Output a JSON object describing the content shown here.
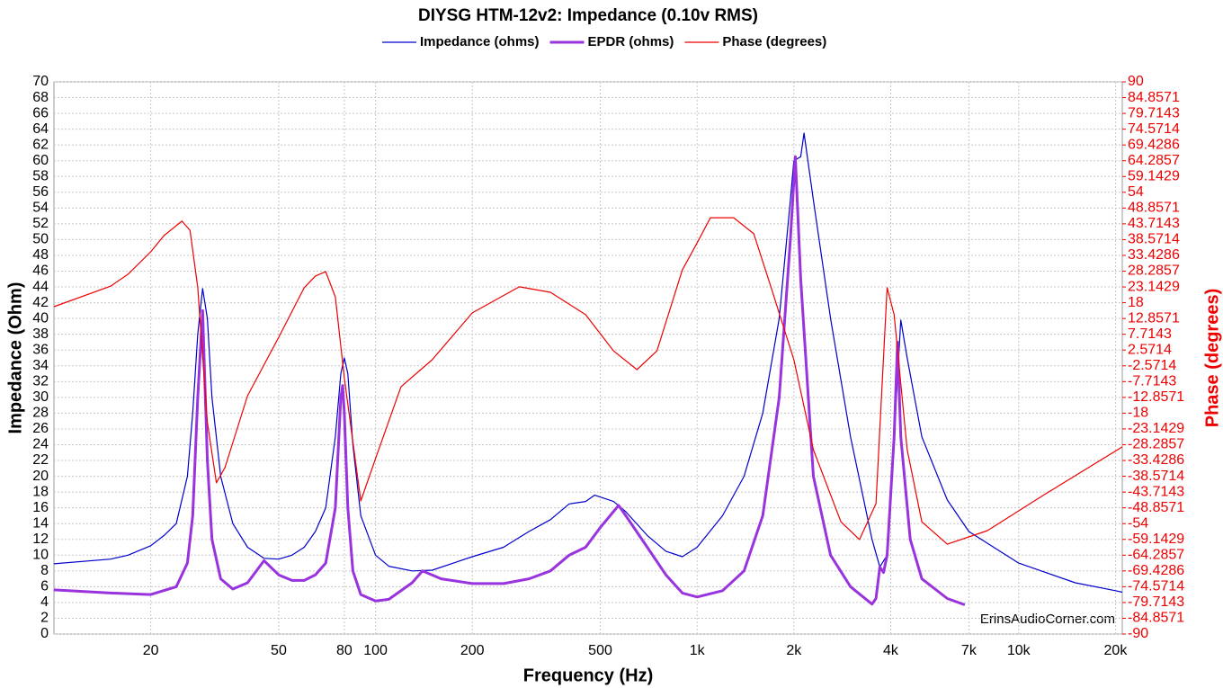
{
  "chart_data": {
    "type": "line",
    "title": "DIYSG HTM-12v2: Impedance (0.10v RMS)",
    "xlabel": "Frequency (Hz)",
    "ylabel": "Impedance (Ohm)",
    "y2label": "Phase (degrees)",
    "annotation": "ErinsAudioCorner.com",
    "xscale": "log",
    "grid": true,
    "legend": "top",
    "xlim": [
      10,
      21000
    ],
    "xticks": [
      20,
      50,
      80,
      100,
      200,
      500,
      {
        "value": 1000,
        "label": "1k"
      },
      {
        "value": 2000,
        "label": "2k"
      },
      {
        "value": 4000,
        "label": "4k"
      },
      {
        "value": 7000,
        "label": "7k"
      },
      {
        "value": 10000,
        "label": "10k"
      },
      {
        "value": 20000,
        "label": "20k"
      }
    ],
    "ylim": [
      0,
      70
    ],
    "yticks": [
      0,
      2,
      4,
      6,
      8,
      10,
      12,
      14,
      16,
      18,
      20,
      22,
      24,
      26,
      28,
      30,
      32,
      34,
      36,
      38,
      40,
      42,
      44,
      46,
      48,
      50,
      52,
      54,
      56,
      58,
      60,
      62,
      64,
      66,
      68,
      70
    ],
    "y2lim": [
      -90,
      90
    ],
    "y2ticks": [
      -90,
      -84.8571,
      -79.7143,
      -74.5714,
      -69.4286,
      -64.2857,
      -59.1429,
      -54,
      -48.8571,
      -43.7143,
      -38.5714,
      -33.4286,
      -28.2857,
      -23.1429,
      -18,
      -12.8571,
      -7.7143,
      -2.5714,
      2.5714,
      7.7143,
      12.8571,
      18,
      23.1429,
      28.2857,
      33.4286,
      38.5714,
      43.7143,
      48.8571,
      54,
      59.1429,
      64.2857,
      69.4286,
      74.5714,
      79.7143,
      84.8571,
      90
    ],
    "series": [
      {
        "name": "Impedance (ohms)",
        "color": "#0000cc",
        "width": 1.2,
        "x": [
          10,
          15,
          17,
          20,
          22,
          24,
          26,
          27,
          28,
          29,
          30,
          31,
          33,
          36,
          40,
          45,
          50,
          55,
          60,
          65,
          70,
          75,
          78,
          80,
          82,
          85,
          90,
          100,
          110,
          130,
          150,
          200,
          250,
          300,
          350,
          400,
          450,
          480,
          550,
          600,
          700,
          800,
          900,
          1000,
          1200,
          1400,
          1600,
          1800,
          1950,
          2000,
          2100,
          2150,
          2300,
          2600,
          3000,
          3500,
          3700,
          3900,
          4100,
          4300,
          4500,
          5000,
          6000,
          7000,
          10000,
          15000,
          20000,
          21000
        ],
        "values": [
          8.9,
          9.5,
          10,
          11.2,
          12.5,
          14,
          20,
          28,
          38,
          43.8,
          40,
          30,
          20,
          14,
          11,
          9.6,
          9.5,
          10,
          11,
          13,
          16,
          25,
          33,
          35,
          33,
          24,
          15,
          10,
          8.6,
          8,
          8.1,
          9.8,
          11,
          13,
          14.5,
          16.5,
          16.8,
          17.6,
          16.8,
          15.5,
          12.5,
          10.5,
          9.8,
          11,
          15,
          20,
          28,
          40,
          55,
          60,
          60.5,
          63.5,
          55,
          40,
          25,
          12,
          8.5,
          10,
          25,
          39.8,
          35,
          25,
          17,
          13,
          9,
          6.5,
          5.5,
          5.3
        ]
      },
      {
        "name": "EPDR (ohms)",
        "color": "#9933dd",
        "width": 3,
        "x": [
          10,
          15,
          20,
          24,
          26,
          27,
          28,
          29,
          30,
          31,
          33,
          36,
          40,
          45,
          50,
          55,
          60,
          65,
          70,
          75,
          78,
          79,
          80,
          82,
          85,
          90,
          100,
          110,
          130,
          140,
          160,
          200,
          250,
          300,
          350,
          400,
          450,
          500,
          570,
          600,
          700,
          800,
          900,
          1000,
          1200,
          1400,
          1600,
          1800,
          1950,
          2020,
          2100,
          2300,
          2600,
          3000,
          3500,
          3600,
          3700,
          3800,
          3900,
          4100,
          4200,
          4300,
          4600,
          5000,
          6000,
          6800
        ],
        "values": [
          5.6,
          5.2,
          5,
          6,
          9,
          15,
          30,
          41,
          22,
          12,
          7,
          5.7,
          6.5,
          9.3,
          7.5,
          6.8,
          6.8,
          7.5,
          9,
          16,
          30,
          31.5,
          28,
          16,
          8,
          5,
          4.2,
          4.4,
          6.5,
          8,
          7,
          6.4,
          6.4,
          7,
          8,
          10,
          11,
          13.5,
          16.3,
          15,
          11,
          7.5,
          5.2,
          4.7,
          5.5,
          8,
          15,
          30,
          50,
          60.5,
          45,
          20,
          10,
          6,
          3.8,
          4.5,
          8.5,
          7.8,
          10,
          25,
          37,
          25,
          12,
          7,
          4.5,
          3.7
        ]
      },
      {
        "name": "Phase (degrees)",
        "color": "#ee0000",
        "width": 1.2,
        "axis": "y2",
        "x": [
          10,
          15,
          17,
          20,
          22,
          25,
          26.5,
          28,
          30,
          32,
          34,
          40,
          50,
          60,
          65,
          70,
          75,
          80,
          90,
          100,
          120,
          150,
          200,
          280,
          350,
          450,
          550,
          650,
          750,
          900,
          1000,
          1100,
          1300,
          1500,
          1700,
          2000,
          2300,
          2800,
          3200,
          3600,
          3900,
          4100,
          4500,
          5000,
          6000,
          8000,
          12000,
          21000
        ],
        "values": [
          16.7,
          23.4,
          27.3,
          34.6,
          39.9,
          44.6,
          41.6,
          23,
          -21,
          -40.7,
          -35.8,
          -12.3,
          6.7,
          22.9,
          26.7,
          28.1,
          19.9,
          -6.5,
          -46.6,
          -32.8,
          -9.4,
          -0.6,
          14.7,
          23.2,
          21.4,
          14.1,
          2.3,
          -3.8,
          2.3,
          28.7,
          37.5,
          45.7,
          45.7,
          40.5,
          22.9,
          -0.6,
          -29.9,
          -53.4,
          -59.2,
          -47.5,
          22.9,
          14.1,
          -29.9,
          -53.4,
          -60.7,
          -56.3,
          -44.6,
          -29
        ]
      }
    ]
  }
}
